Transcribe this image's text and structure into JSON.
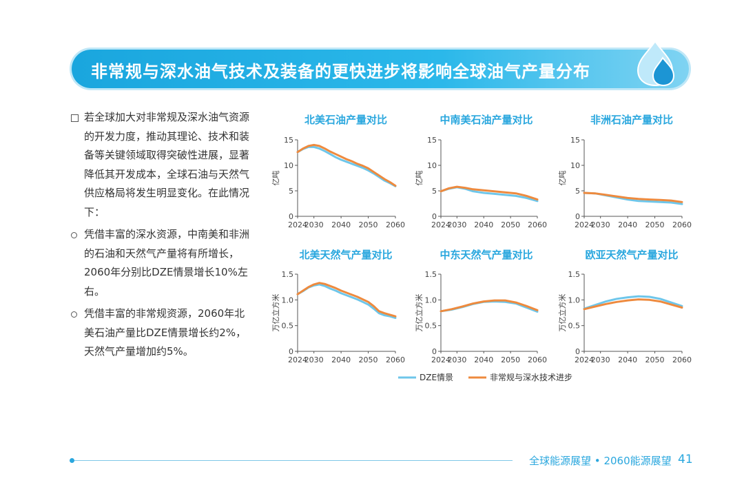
{
  "banner": {
    "title": "非常规与深水油气技术及装备的更快进步将影响全球油气产量分布"
  },
  "bullets": [
    {
      "marker": "square",
      "text": "若全球加大对非常规及深水油气资源的开发力度，推动其理论、技术和装备等关键领域取得突破性进展，显著降低其开发成本，全球石油与天然气供应格局将发生明显变化。在此情况下："
    },
    {
      "marker": "circle",
      "text": "凭借丰富的深水资源，中南美和非洲的石油和天然气产量将有所增长，2060年分别比DZE情景增长10%左右。"
    },
    {
      "marker": "circle",
      "text": "凭借丰富的非常规资源，2060年北美石油产量比DZE情景增长约2%，天然气产量增加约5%。"
    }
  ],
  "colors": {
    "dze": "#6ec6ea",
    "tech": "#ee8a3e",
    "accent": "#2aa7de"
  },
  "legend": {
    "dze": "DZE情景",
    "tech": "非常规与深水技术进步"
  },
  "chart_data": [
    {
      "type": "line",
      "title": "北美石油产量对比",
      "ylabel": "亿吨",
      "ylim": [
        0,
        15
      ],
      "yticks": [
        "0",
        "5",
        "10",
        "15"
      ],
      "ytick_values": [
        0,
        5,
        10,
        15
      ],
      "xlim": [
        2024,
        2060
      ],
      "xticks": [
        "2024",
        "2030",
        "2040",
        "2050",
        "2060"
      ],
      "xtick_values": [
        2024,
        2030,
        2040,
        2050,
        2060
      ],
      "series": [
        {
          "name": "DZE情景",
          "x": [
            2024,
            2026,
            2028,
            2030,
            2032,
            2034,
            2036,
            2038,
            2040,
            2042,
            2044,
            2046,
            2048,
            2050,
            2052,
            2054,
            2056,
            2058,
            2060
          ],
          "values": [
            12.6,
            13.2,
            13.6,
            13.6,
            13.3,
            12.8,
            12.2,
            11.6,
            11.1,
            10.7,
            10.3,
            9.9,
            9.5,
            9.0,
            8.4,
            7.7,
            7.0,
            6.5,
            5.9
          ]
        },
        {
          "name": "非常规与深水技术进步",
          "x": [
            2024,
            2026,
            2028,
            2030,
            2032,
            2034,
            2036,
            2038,
            2040,
            2042,
            2044,
            2046,
            2048,
            2050,
            2052,
            2054,
            2056,
            2058,
            2060
          ],
          "values": [
            12.6,
            13.3,
            13.8,
            14.0,
            13.8,
            13.3,
            12.7,
            12.2,
            11.7,
            11.2,
            10.8,
            10.3,
            9.9,
            9.4,
            8.7,
            8.0,
            7.3,
            6.7,
            6.0
          ]
        }
      ]
    },
    {
      "type": "line",
      "title": "中南美石油产量对比",
      "ylabel": "亿吨",
      "ylim": [
        0,
        15
      ],
      "yticks": [
        "0",
        "5",
        "10",
        "15"
      ],
      "ytick_values": [
        0,
        5,
        10,
        15
      ],
      "xlim": [
        2024,
        2060
      ],
      "xticks": [
        "2024",
        "2030",
        "2040",
        "2050",
        "2060"
      ],
      "xtick_values": [
        2024,
        2030,
        2040,
        2050,
        2060
      ],
      "series": [
        {
          "name": "DZE情景",
          "x": [
            2024,
            2027,
            2030,
            2033,
            2036,
            2040,
            2044,
            2048,
            2052,
            2056,
            2060
          ],
          "values": [
            4.9,
            5.4,
            5.7,
            5.4,
            4.9,
            4.6,
            4.4,
            4.2,
            4.0,
            3.6,
            3.0
          ]
        },
        {
          "name": "非常规与深水技术进步",
          "x": [
            2024,
            2027,
            2030,
            2033,
            2036,
            2040,
            2044,
            2048,
            2052,
            2056,
            2060
          ],
          "values": [
            4.9,
            5.5,
            5.8,
            5.6,
            5.3,
            5.1,
            4.9,
            4.7,
            4.5,
            4.0,
            3.3
          ]
        }
      ]
    },
    {
      "type": "line",
      "title": "非洲石油产量对比",
      "ylabel": "亿吨",
      "ylim": [
        0,
        15
      ],
      "yticks": [
        "0",
        "5",
        "10",
        "15"
      ],
      "ytick_values": [
        0,
        5,
        10,
        15
      ],
      "xlim": [
        2024,
        2060
      ],
      "xticks": [
        "2024",
        "2030",
        "2040",
        "2050",
        "2060"
      ],
      "xtick_values": [
        2024,
        2030,
        2040,
        2050,
        2060
      ],
      "series": [
        {
          "name": "DZE情景",
          "x": [
            2024,
            2028,
            2032,
            2036,
            2040,
            2044,
            2048,
            2052,
            2056,
            2060
          ],
          "values": [
            4.6,
            4.5,
            4.1,
            3.7,
            3.3,
            3.0,
            2.9,
            2.8,
            2.7,
            2.4
          ]
        },
        {
          "name": "非常规与深水技术进步",
          "x": [
            2024,
            2028,
            2032,
            2036,
            2040,
            2044,
            2048,
            2052,
            2056,
            2060
          ],
          "values": [
            4.6,
            4.5,
            4.2,
            3.9,
            3.6,
            3.4,
            3.3,
            3.2,
            3.1,
            2.8
          ]
        }
      ]
    },
    {
      "type": "line",
      "title": "北美天然气产量对比",
      "ylabel": "万亿立方米",
      "ylim": [
        0,
        1.5
      ],
      "yticks": [
        "0",
        "0.5",
        "1.0",
        "1.5"
      ],
      "ytick_values": [
        0,
        0.5,
        1.0,
        1.5
      ],
      "xlim": [
        2024,
        2060
      ],
      "xticks": [
        "2024",
        "2030",
        "2040",
        "2050",
        "2060"
      ],
      "xtick_values": [
        2024,
        2030,
        2040,
        2050,
        2060
      ],
      "series": [
        {
          "name": "DZE情景",
          "x": [
            2024,
            2026,
            2028,
            2030,
            2032,
            2034,
            2036,
            2038,
            2040,
            2042,
            2044,
            2046,
            2048,
            2050,
            2052,
            2054,
            2056,
            2058,
            2060
          ],
          "values": [
            1.11,
            1.17,
            1.24,
            1.28,
            1.3,
            1.27,
            1.22,
            1.18,
            1.13,
            1.09,
            1.05,
            1.01,
            0.96,
            0.91,
            0.83,
            0.74,
            0.7,
            0.68,
            0.65
          ]
        },
        {
          "name": "非常规与深水技术进步",
          "x": [
            2024,
            2026,
            2028,
            2030,
            2032,
            2034,
            2036,
            2038,
            2040,
            2042,
            2044,
            2046,
            2048,
            2050,
            2052,
            2054,
            2056,
            2058,
            2060
          ],
          "values": [
            1.11,
            1.18,
            1.25,
            1.3,
            1.33,
            1.31,
            1.27,
            1.23,
            1.18,
            1.14,
            1.1,
            1.06,
            1.01,
            0.96,
            0.88,
            0.78,
            0.74,
            0.71,
            0.68
          ]
        }
      ]
    },
    {
      "type": "line",
      "title": "中东天然气产量对比",
      "ylabel": "万亿立方米",
      "ylim": [
        0,
        1.5
      ],
      "yticks": [
        "0",
        "0.5",
        "1.0",
        "1.5"
      ],
      "ytick_values": [
        0,
        0.5,
        1.0,
        1.5
      ],
      "xlim": [
        2024,
        2060
      ],
      "xticks": [
        "2024",
        "2030",
        "2040",
        "2050",
        "2060"
      ],
      "xtick_values": [
        2024,
        2030,
        2040,
        2050,
        2060
      ],
      "series": [
        {
          "name": "DZE情景",
          "x": [
            2024,
            2028,
            2032,
            2036,
            2040,
            2044,
            2048,
            2052,
            2056,
            2060
          ],
          "values": [
            0.78,
            0.81,
            0.86,
            0.92,
            0.96,
            0.97,
            0.96,
            0.93,
            0.85,
            0.77
          ]
        },
        {
          "name": "非常规与深水技术进步",
          "x": [
            2024,
            2028,
            2032,
            2036,
            2040,
            2044,
            2048,
            2052,
            2056,
            2060
          ],
          "values": [
            0.78,
            0.82,
            0.87,
            0.93,
            0.97,
            0.99,
            0.99,
            0.95,
            0.88,
            0.8
          ]
        }
      ]
    },
    {
      "type": "line",
      "title": "欧亚天然气产量对比",
      "ylabel": "万亿立方米",
      "ylim": [
        0,
        1.5
      ],
      "yticks": [
        "0",
        "0.5",
        "1.0",
        "1.5"
      ],
      "ytick_values": [
        0,
        0.5,
        1.0,
        1.5
      ],
      "xlim": [
        2024,
        2060
      ],
      "xticks": [
        "2024",
        "2030",
        "2040",
        "2050",
        "2060"
      ],
      "xtick_values": [
        2024,
        2030,
        2040,
        2050,
        2060
      ],
      "series": [
        {
          "name": "DZE情景",
          "x": [
            2024,
            2028,
            2032,
            2036,
            2040,
            2044,
            2048,
            2052,
            2056,
            2060
          ],
          "values": [
            0.83,
            0.9,
            0.97,
            1.02,
            1.05,
            1.07,
            1.06,
            1.02,
            0.95,
            0.88
          ]
        },
        {
          "name": "非常规与深水技术进步",
          "x": [
            2024,
            2028,
            2032,
            2036,
            2040,
            2044,
            2048,
            2052,
            2056,
            2060
          ],
          "values": [
            0.82,
            0.87,
            0.92,
            0.96,
            0.99,
            1.01,
            1.0,
            0.97,
            0.91,
            0.85
          ]
        }
      ]
    }
  ],
  "footer": {
    "left": "全球能源展望",
    "sep": "•",
    "right": "2060能源展望",
    "page": "41"
  }
}
